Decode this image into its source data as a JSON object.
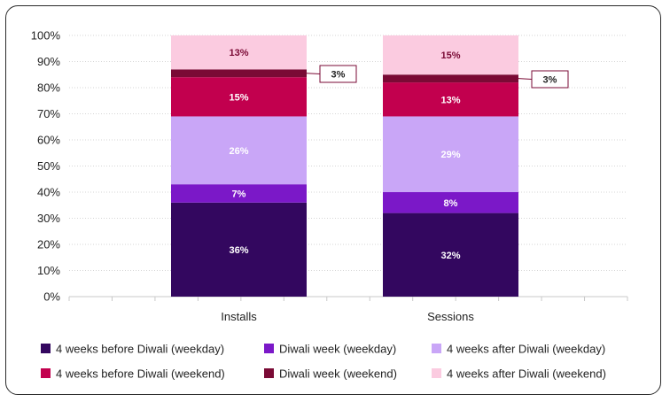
{
  "chart_data": {
    "type": "bar",
    "stacked": true,
    "percent": true,
    "categories": [
      "Installs",
      "Sessions"
    ],
    "yticks": [
      "0%",
      "10%",
      "20%",
      "30%",
      "40%",
      "50%",
      "60%",
      "70%",
      "80%",
      "90%",
      "100%"
    ],
    "ylim": [
      0,
      100
    ],
    "grid": "horizontal-dotted",
    "legend_position": "bottom",
    "series": [
      {
        "name": "4 weeks before Diwali (weekday)",
        "color": "#33075f",
        "label_color": "#ffffff",
        "values": [
          36,
          32
        ],
        "labels": [
          "36%",
          "32%"
        ]
      },
      {
        "name": "Diwali week (weekday)",
        "color": "#7b18c8",
        "label_color": "#ffffff",
        "values": [
          7,
          8
        ],
        "labels": [
          "7%",
          "8%"
        ]
      },
      {
        "name": "4 weeks after Diwali (weekday)",
        "color": "#c9a6f7",
        "label_color": "#ffffff",
        "values": [
          26,
          29
        ],
        "labels": [
          "26%",
          "29%"
        ]
      },
      {
        "name": "4 weeks before Diwali (weekend)",
        "color": "#c2004e",
        "label_color": "#ffffff",
        "values": [
          15,
          13
        ],
        "labels": [
          "15%",
          "13%"
        ]
      },
      {
        "name": "Diwali week (weekend)",
        "color": "#7a0a35",
        "label_color": "#ffffff",
        "values": [
          3,
          3
        ],
        "labels": [
          "3%",
          "3%"
        ],
        "callout": true
      },
      {
        "name": "4 weeks after Diwali (weekend)",
        "color": "#fbcbe0",
        "label_color": "#7a0a35",
        "values": [
          13,
          15
        ],
        "labels": [
          "13%",
          "15%"
        ]
      }
    ]
  }
}
